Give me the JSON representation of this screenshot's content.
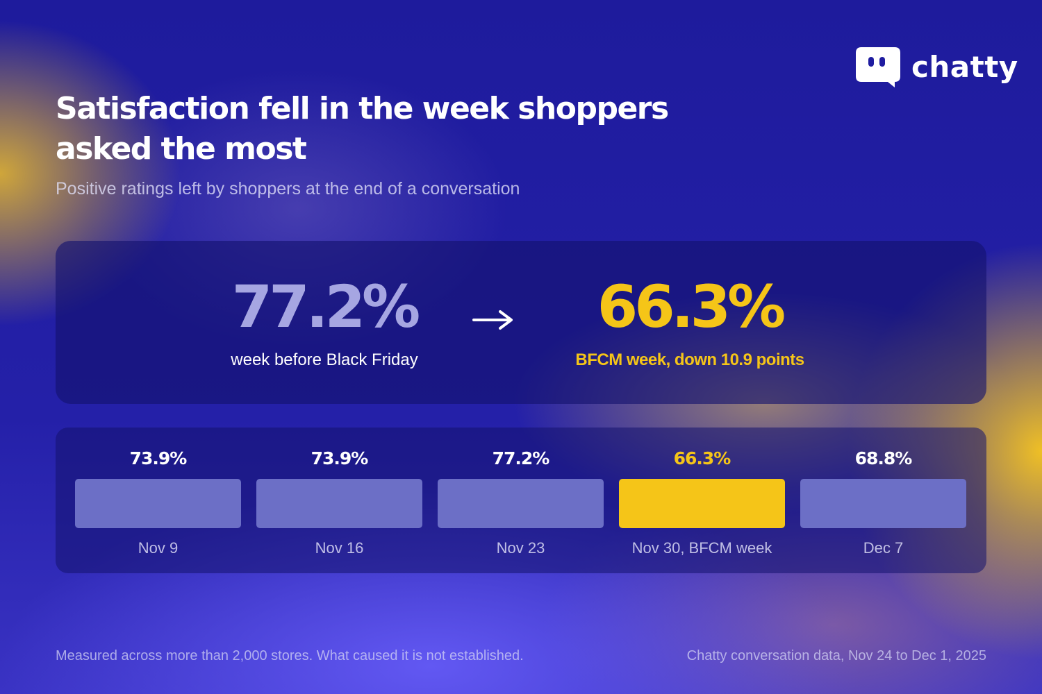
{
  "brand": {
    "name": "chatty"
  },
  "title": "Satisfaction fell in the week shoppers asked the most",
  "subtitle": "Positive ratings left by shoppers at the end of a conversation",
  "kpi": {
    "before_value": "77.2%",
    "before_label": "week before Black Friday",
    "after_value": "66.3%",
    "after_label": "BFCM week, down 10.9 points"
  },
  "colors": {
    "background": "#1f1ca0",
    "accent": "#f5c518",
    "bar": "#6c6fc6",
    "muted_value": "#a6a6e2"
  },
  "chart_data": {
    "type": "bar",
    "categories": [
      "Nov 9",
      "Nov 16",
      "Nov 23",
      "Nov 30, BFCM week",
      "Dec 7"
    ],
    "values": [
      73.9,
      73.9,
      77.2,
      66.3,
      68.8
    ],
    "value_labels": [
      "73.9%",
      "73.9%",
      "77.2%",
      "66.3%",
      "68.8%"
    ],
    "highlight_index": 3,
    "title": "",
    "xlabel": "",
    "ylabel": "",
    "grid": false
  },
  "footer": {
    "note": "Measured across more than 2,000 stores. What caused it is not established.",
    "source": "Chatty conversation data, Nov 24 to Dec 1, 2025"
  }
}
